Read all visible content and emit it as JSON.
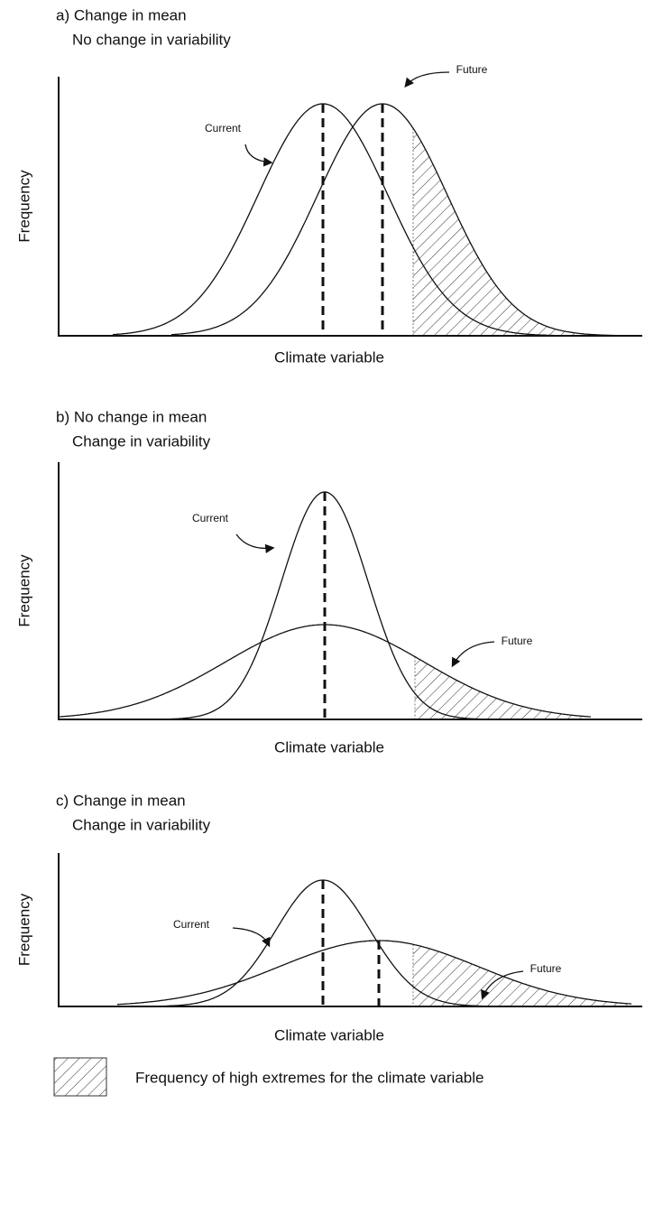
{
  "panels": [
    {
      "title_line1": "a) Change in mean",
      "title_line2": "No change in variability",
      "y_label": "Frequency",
      "x_label": "Climate variable",
      "current_label": "Current",
      "future_label": "Future"
    },
    {
      "title_line1": "b) No change in mean",
      "title_line2": "Change in variability",
      "y_label": "Frequency",
      "x_label": "Climate variable",
      "current_label": "Current",
      "future_label": "Future"
    },
    {
      "title_line1": "c) Change in mean",
      "title_line2": "Change in variability",
      "y_label": "Frequency",
      "x_label": "Climate variable",
      "current_label": "Current",
      "future_label": "Future"
    }
  ],
  "legend": {
    "label": "Frequency of high extremes for the climate variable"
  }
}
